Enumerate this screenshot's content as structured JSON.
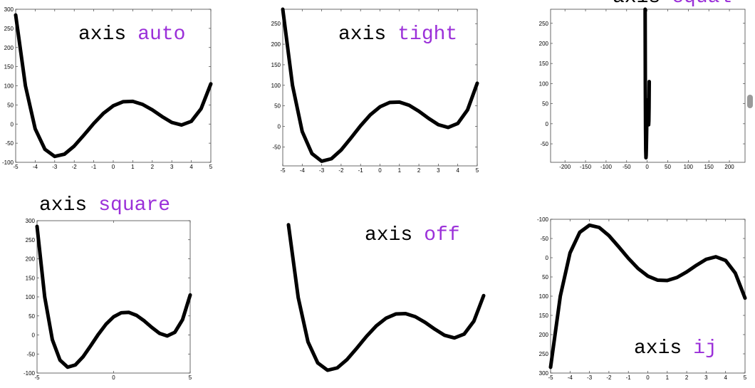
{
  "chart_data": [
    {
      "type": "line",
      "title": [
        "axis",
        "auto"
      ],
      "title_colors": [
        "#000000",
        "#9b30d9"
      ],
      "color": "#000000",
      "axis": true,
      "x": [
        -5,
        -4.5,
        -4,
        -3.5,
        -3,
        -2.5,
        -2,
        -1.5,
        -1,
        -0.5,
        0,
        0.5,
        1,
        1.5,
        2,
        2.5,
        3,
        3.5,
        4,
        4.5,
        5
      ],
      "values": [
        285,
        100,
        -12.5,
        -66.1,
        -84.6,
        -78.7,
        -57.5,
        -28.6,
        1.5,
        28.1,
        47.7,
        58.3,
        59.3,
        51.4,
        37,
        19.6,
        4.2,
        -2.5,
        7.1,
        40,
        105
      ],
      "xlim": [
        -5,
        5
      ],
      "ylim": [
        -100,
        300
      ],
      "xticks": [
        -5,
        -4,
        -3,
        -2,
        -1,
        0,
        1,
        2,
        3,
        4,
        5
      ],
      "yticks": [
        -100,
        -50,
        0,
        50,
        100,
        150,
        200,
        250,
        300
      ]
    },
    {
      "type": "line",
      "title": [
        "axis",
        "tight"
      ],
      "title_colors": [
        "#000000",
        "#9b30d9"
      ],
      "color": "#000000",
      "axis": true,
      "x": [
        -5,
        -4.5,
        -4,
        -3.5,
        -3,
        -2.5,
        -2,
        -1.5,
        -1,
        -0.5,
        0,
        0.5,
        1,
        1.5,
        2,
        2.5,
        3,
        3.5,
        4,
        4.5,
        5
      ],
      "values": [
        285,
        100,
        -12.5,
        -66.1,
        -84.6,
        -78.7,
        -57.5,
        -28.6,
        1.5,
        28.1,
        47.7,
        58.3,
        59.3,
        51.4,
        37,
        19.6,
        4.2,
        -2.5,
        7.1,
        40,
        105
      ],
      "xlim": [
        -5,
        5
      ],
      "ylim": [
        -96,
        285
      ],
      "xticks": [
        -5,
        -4,
        -3,
        -2,
        -1,
        0,
        1,
        2,
        3,
        4,
        5
      ],
      "yticks": [
        -50,
        0,
        50,
        100,
        150,
        200,
        250
      ]
    },
    {
      "type": "line",
      "title": [
        "axis",
        "equal"
      ],
      "title_colors": [
        "#000000",
        "#9b30d9"
      ],
      "color": "#000000",
      "axis": true,
      "x": [
        -5,
        -4.5,
        -4,
        -3.5,
        -3,
        -2.5,
        -2,
        -1.5,
        -1,
        -0.5,
        0,
        0.5,
        1,
        1.5,
        2,
        2.5,
        3,
        3.5,
        4,
        4.5,
        5
      ],
      "values": [
        285,
        100,
        -12.5,
        -66.1,
        -84.6,
        -78.7,
        -57.5,
        -28.6,
        1.5,
        28.1,
        47.7,
        58.3,
        59.3,
        51.4,
        37,
        19.6,
        4.2,
        -2.5,
        7.1,
        40,
        105
      ],
      "xlim": [
        -235,
        238
      ],
      "ylim": [
        -96,
        285
      ],
      "xticks": [
        -200,
        -150,
        -100,
        -50,
        0,
        50,
        100,
        150,
        200
      ],
      "yticks": [
        -50,
        0,
        50,
        100,
        150,
        200,
        250
      ]
    },
    {
      "type": "line",
      "title": [
        "axis",
        "square"
      ],
      "title_colors": [
        "#000000",
        "#9b30d9"
      ],
      "color": "#000000",
      "axis": true,
      "x": [
        -5,
        -4.5,
        -4,
        -3.5,
        -3,
        -2.5,
        -2,
        -1.5,
        -1,
        -0.5,
        0,
        0.5,
        1,
        1.5,
        2,
        2.5,
        3,
        3.5,
        4,
        4.5,
        5
      ],
      "values": [
        285,
        100,
        -12.5,
        -66.1,
        -84.6,
        -78.7,
        -57.5,
        -28.6,
        1.5,
        28.1,
        47.7,
        58.3,
        59.3,
        51.4,
        37,
        19.6,
        4.2,
        -2.5,
        7.1,
        40,
        105
      ],
      "xlim": [
        -5,
        5
      ],
      "ylim": [
        -100,
        300
      ],
      "xticks": [
        -5,
        0,
        5
      ],
      "yticks": [
        -100,
        -50,
        0,
        50,
        100,
        150,
        200,
        250,
        300
      ]
    },
    {
      "type": "line",
      "title": [
        "axis",
        "off"
      ],
      "title_colors": [
        "#000000",
        "#9b30d9"
      ],
      "color": "#000000",
      "axis": false,
      "x": [
        -5,
        -4.5,
        -4,
        -3.5,
        -3,
        -2.5,
        -2,
        -1.5,
        -1,
        -0.5,
        0,
        0.5,
        1,
        1.5,
        2,
        2.5,
        3,
        3.5,
        4,
        4.5,
        5
      ],
      "values": [
        285,
        100,
        -12.5,
        -66.1,
        -84.6,
        -78.7,
        -57.5,
        -28.6,
        1.5,
        28.1,
        47.7,
        58.3,
        59.3,
        51.4,
        37,
        19.6,
        4.2,
        -2.5,
        7.1,
        40,
        105
      ],
      "xlim": [
        -5,
        5
      ],
      "ylim": [
        -90,
        290
      ]
    },
    {
      "type": "line",
      "title": [
        "axis",
        "ij"
      ],
      "title_colors": [
        "#000000",
        "#9b30d9"
      ],
      "color": "#000000",
      "axis": true,
      "y_direction": "reverse",
      "x": [
        -5,
        -4.5,
        -4,
        -3.5,
        -3,
        -2.5,
        -2,
        -1.5,
        -1,
        -0.5,
        0,
        0.5,
        1,
        1.5,
        2,
        2.5,
        3,
        3.5,
        4,
        4.5,
        5
      ],
      "values": [
        285,
        100,
        -12.5,
        -66.1,
        -84.6,
        -78.7,
        -57.5,
        -28.6,
        1.5,
        28.1,
        47.7,
        58.3,
        59.3,
        51.4,
        37,
        19.6,
        4.2,
        -2.5,
        7.1,
        40,
        105
      ],
      "xlim": [
        -5,
        5
      ],
      "ylim": [
        -100,
        300
      ],
      "xticks": [
        -5,
        -4,
        -3,
        -2,
        -1,
        0,
        1,
        2,
        3,
        4,
        5
      ],
      "yticks": [
        -100,
        -50,
        0,
        50,
        100,
        150,
        200,
        250,
        300
      ]
    }
  ]
}
